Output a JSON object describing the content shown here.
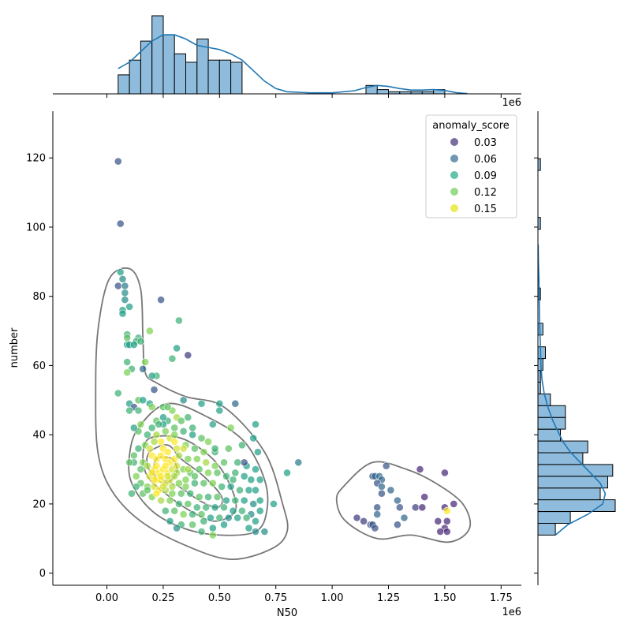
{
  "chart_data": {
    "type": "scatter",
    "xlabel": "N50",
    "ylabel": "number",
    "x_offset_label": "1e6",
    "top_offset_label": "1e6",
    "xlim": [
      -0.24,
      1.84
    ],
    "ylim": [
      -3.5,
      133.5
    ],
    "x_ticks": [
      0.0,
      0.25,
      0.5,
      0.75,
      1.0,
      1.25,
      1.5,
      1.75
    ],
    "x_tick_labels": [
      "0.00",
      "0.25",
      "0.50",
      "0.75",
      "1.00",
      "1.25",
      "1.50",
      "1.75"
    ],
    "y_ticks": [
      0,
      20,
      40,
      60,
      80,
      100,
      120
    ],
    "y_tick_labels": [
      "0",
      "20",
      "40",
      "60",
      "80",
      "100",
      "120"
    ],
    "legend": {
      "title": "anomaly_score",
      "position": "top-right",
      "entries": [
        {
          "label": "0.03",
          "color": "#4d3b82"
        },
        {
          "label": "0.06",
          "color": "#3f7398"
        },
        {
          "label": "0.09",
          "color": "#2fae8e"
        },
        {
          "label": "0.12",
          "color": "#79cf62"
        },
        {
          "label": "0.15",
          "color": "#e8e420"
        }
      ]
    },
    "points": [
      [
        0.05,
        119,
        0.05
      ],
      [
        0.06,
        101,
        0.05
      ],
      [
        0.06,
        87,
        0.09
      ],
      [
        0.07,
        85,
        0.08
      ],
      [
        0.05,
        83,
        0.05
      ],
      [
        0.08,
        83,
        0.07
      ],
      [
        0.08,
        81,
        0.08
      ],
      [
        0.24,
        79,
        0.05
      ],
      [
        0.1,
        77,
        0.09
      ],
      [
        0.08,
        79,
        0.08
      ],
      [
        0.07,
        76,
        0.09
      ],
      [
        0.07,
        75,
        0.09
      ],
      [
        0.32,
        73,
        0.1
      ],
      [
        0.19,
        70,
        0.12
      ],
      [
        0.09,
        69,
        0.1
      ],
      [
        0.09,
        68,
        0.11
      ],
      [
        0.09,
        66,
        0.09
      ],
      [
        0.1,
        66,
        0.09
      ],
      [
        0.14,
        68,
        0.1
      ],
      [
        0.13,
        67,
        0.1
      ],
      [
        0.15,
        67,
        0.1
      ],
      [
        0.12,
        66,
        0.09
      ],
      [
        0.31,
        65,
        0.09
      ],
      [
        0.36,
        63,
        0.04
      ],
      [
        0.29,
        62,
        0.1
      ],
      [
        0.17,
        61,
        0.12
      ],
      [
        0.09,
        61,
        0.1
      ],
      [
        0.11,
        59,
        0.1
      ],
      [
        0.16,
        59,
        0.06
      ],
      [
        0.09,
        58,
        0.12
      ],
      [
        0.22,
        57,
        0.1
      ],
      [
        0.2,
        57,
        0.09
      ],
      [
        0.05,
        52,
        0.1
      ],
      [
        0.21,
        53,
        0.05
      ],
      [
        0.1,
        49,
        0.09
      ],
      [
        0.12,
        48,
        0.05
      ],
      [
        0.14,
        50,
        0.11
      ],
      [
        0.1,
        47,
        0.1
      ],
      [
        0.16,
        50,
        0.09
      ],
      [
        0.14,
        47,
        0.1
      ],
      [
        0.19,
        49,
        0.09
      ],
      [
        0.2,
        48,
        0.12
      ],
      [
        0.25,
        48,
        0.11
      ],
      [
        0.34,
        50,
        0.08
      ],
      [
        0.42,
        49,
        0.09
      ],
      [
        0.5,
        49,
        0.09
      ],
      [
        0.57,
        49,
        0.06
      ],
      [
        0.5,
        47,
        0.09
      ],
      [
        0.66,
        43,
        0.09
      ],
      [
        0.47,
        43,
        0.09
      ],
      [
        0.29,
        47,
        0.12
      ],
      [
        0.31,
        45,
        0.13
      ],
      [
        0.27,
        44,
        0.1
      ],
      [
        0.33,
        44,
        0.11
      ],
      [
        0.36,
        45,
        0.1
      ],
      [
        0.25,
        43,
        0.09
      ],
      [
        0.22,
        44,
        0.11
      ],
      [
        0.2,
        42,
        0.1
      ],
      [
        0.15,
        43,
        0.12
      ],
      [
        0.14,
        41,
        0.11
      ],
      [
        0.12,
        42,
        0.09
      ],
      [
        0.18,
        40,
        0.1
      ],
      [
        0.22,
        40,
        0.13
      ],
      [
        0.26,
        41,
        0.12
      ],
      [
        0.3,
        42,
        0.11
      ],
      [
        0.34,
        41,
        0.1
      ],
      [
        0.38,
        40,
        0.09
      ],
      [
        0.42,
        39,
        0.11
      ],
      [
        0.45,
        38,
        0.12
      ],
      [
        0.28,
        39,
        0.14
      ],
      [
        0.3,
        38,
        0.15
      ],
      [
        0.24,
        38,
        0.15
      ],
      [
        0.21,
        38,
        0.13
      ],
      [
        0.17,
        37,
        0.12
      ],
      [
        0.14,
        36,
        0.1
      ],
      [
        0.12,
        34,
        0.11
      ],
      [
        0.19,
        36,
        0.14
      ],
      [
        0.25,
        36,
        0.15
      ],
      [
        0.27,
        35,
        0.15
      ],
      [
        0.31,
        36,
        0.14
      ],
      [
        0.35,
        37,
        0.12
      ],
      [
        0.39,
        36,
        0.11
      ],
      [
        0.43,
        35,
        0.12
      ],
      [
        0.48,
        35,
        0.1
      ],
      [
        0.54,
        36,
        0.11
      ],
      [
        0.6,
        37,
        0.1
      ],
      [
        0.65,
        39,
        0.09
      ],
      [
        0.67,
        35,
        0.09
      ],
      [
        0.2,
        34,
        0.15
      ],
      [
        0.22,
        33,
        0.15
      ],
      [
        0.24,
        34,
        0.16
      ],
      [
        0.26,
        33,
        0.15
      ],
      [
        0.28,
        32,
        0.16
      ],
      [
        0.3,
        33,
        0.15
      ],
      [
        0.32,
        34,
        0.13
      ],
      [
        0.36,
        33,
        0.12
      ],
      [
        0.4,
        33,
        0.12
      ],
      [
        0.44,
        32,
        0.13
      ],
      [
        0.48,
        31,
        0.12
      ],
      [
        0.52,
        32,
        0.11
      ],
      [
        0.58,
        32,
        0.1
      ],
      [
        0.62,
        31,
        0.09
      ],
      [
        0.66,
        30,
        0.09
      ],
      [
        0.16,
        32,
        0.12
      ],
      [
        0.12,
        32,
        0.1
      ],
      [
        0.15,
        30,
        0.11
      ],
      [
        0.18,
        31,
        0.13
      ],
      [
        0.21,
        30,
        0.15
      ],
      [
        0.23,
        29,
        0.16
      ],
      [
        0.25,
        30,
        0.15
      ],
      [
        0.27,
        29,
        0.15
      ],
      [
        0.29,
        30,
        0.14
      ],
      [
        0.31,
        29,
        0.13
      ],
      [
        0.34,
        30,
        0.12
      ],
      [
        0.37,
        29,
        0.11
      ],
      [
        0.41,
        30,
        0.11
      ],
      [
        0.45,
        29,
        0.12
      ],
      [
        0.49,
        29,
        0.11
      ],
      [
        0.53,
        28,
        0.1
      ],
      [
        0.57,
        29,
        0.1
      ],
      [
        0.61,
        28,
        0.09
      ],
      [
        0.64,
        27,
        0.09
      ],
      [
        0.68,
        27,
        0.09
      ],
      [
        0.19,
        28,
        0.14
      ],
      [
        0.22,
        27,
        0.15
      ],
      [
        0.24,
        27,
        0.16
      ],
      [
        0.26,
        26,
        0.14
      ],
      [
        0.28,
        27,
        0.14
      ],
      [
        0.32,
        26,
        0.12
      ],
      [
        0.35,
        27,
        0.12
      ],
      [
        0.39,
        26,
        0.1
      ],
      [
        0.43,
        26,
        0.11
      ],
      [
        0.47,
        26,
        0.12
      ],
      [
        0.51,
        25,
        0.1
      ],
      [
        0.55,
        25,
        0.09
      ],
      [
        0.59,
        24,
        0.1
      ],
      [
        0.63,
        24,
        0.09
      ],
      [
        0.66,
        24,
        0.09
      ],
      [
        0.18,
        25,
        0.12
      ],
      [
        0.21,
        25,
        0.14
      ],
      [
        0.23,
        24,
        0.15
      ],
      [
        0.26,
        24,
        0.13
      ],
      [
        0.29,
        23,
        0.12
      ],
      [
        0.33,
        23,
        0.11
      ],
      [
        0.37,
        23,
        0.1
      ],
      [
        0.41,
        22,
        0.11
      ],
      [
        0.45,
        22,
        0.1
      ],
      [
        0.49,
        22,
        0.11
      ],
      [
        0.53,
        21,
        0.09
      ],
      [
        0.57,
        21,
        0.1
      ],
      [
        0.61,
        21,
        0.09
      ],
      [
        0.65,
        20,
        0.08
      ],
      [
        0.68,
        21,
        0.09
      ],
      [
        0.74,
        20,
        0.09
      ],
      [
        0.16,
        23,
        0.11
      ],
      [
        0.2,
        22,
        0.12
      ],
      [
        0.24,
        21,
        0.13
      ],
      [
        0.28,
        21,
        0.12
      ],
      [
        0.32,
        20,
        0.1
      ],
      [
        0.36,
        20,
        0.11
      ],
      [
        0.4,
        19,
        0.1
      ],
      [
        0.44,
        19,
        0.1
      ],
      [
        0.48,
        19,
        0.09
      ],
      [
        0.52,
        19,
        0.1
      ],
      [
        0.56,
        18,
        0.09
      ],
      [
        0.6,
        18,
        0.1
      ],
      [
        0.64,
        17,
        0.08
      ],
      [
        0.68,
        18,
        0.09
      ],
      [
        0.26,
        18,
        0.1
      ],
      [
        0.3,
        18,
        0.11
      ],
      [
        0.34,
        17,
        0.12
      ],
      [
        0.38,
        17,
        0.1
      ],
      [
        0.42,
        17,
        0.11
      ],
      [
        0.46,
        16,
        0.09
      ],
      [
        0.5,
        16,
        0.1
      ],
      [
        0.54,
        16,
        0.08
      ],
      [
        0.58,
        16,
        0.09
      ],
      [
        0.62,
        16,
        0.1
      ],
      [
        0.66,
        15,
        0.09
      ],
      [
        0.7,
        12,
        0.08
      ],
      [
        0.28,
        15,
        0.09
      ],
      [
        0.33,
        14,
        0.1
      ],
      [
        0.38,
        14,
        0.11
      ],
      [
        0.43,
        15,
        0.1
      ],
      [
        0.47,
        13,
        0.09
      ],
      [
        0.52,
        14,
        0.09
      ],
      [
        0.42,
        12,
        0.1
      ],
      [
        0.47,
        11,
        0.12
      ],
      [
        0.31,
        13,
        0.08
      ],
      [
        0.63,
        13,
        0.09
      ],
      [
        0.66,
        12,
        0.08
      ],
      [
        0.22,
        23,
        0.15
      ],
      [
        0.18,
        24,
        0.11
      ],
      [
        0.15,
        26,
        0.11
      ],
      [
        0.13,
        25,
        0.1
      ],
      [
        0.11,
        23,
        0.1
      ],
      [
        0.13,
        28,
        0.12
      ],
      [
        0.1,
        32,
        0.11
      ],
      [
        0.25,
        45,
        0.09
      ],
      [
        0.27,
        48,
        0.11
      ],
      [
        0.23,
        43,
        0.1
      ],
      [
        0.3,
        40,
        0.12
      ],
      [
        0.38,
        42,
        0.1
      ],
      [
        0.55,
        42,
        0.12
      ],
      [
        0.61,
        32,
        0.05
      ],
      [
        0.8,
        29,
        0.09
      ],
      [
        0.85,
        32,
        0.07
      ],
      [
        0.56,
        27,
        0.1
      ],
      [
        0.48,
        36,
        0.1
      ],
      [
        0.36,
        30,
        0.13
      ],
      [
        0.34,
        36,
        0.14
      ],
      [
        0.26,
        31,
        0.15
      ],
      [
        0.22,
        31,
        0.16
      ],
      [
        0.2,
        29,
        0.15
      ],
      [
        0.24,
        28,
        0.16
      ],
      [
        0.27,
        28,
        0.14
      ],
      [
        0.3,
        28,
        0.13
      ],
      [
        0.31,
        31,
        0.14
      ],
      [
        0.29,
        25,
        0.13
      ],
      [
        0.25,
        25,
        0.14
      ],
      [
        0.21,
        27,
        0.15
      ],
      [
        0.35,
        25,
        0.12
      ],
      [
        0.39,
        28,
        0.11
      ],
      [
        1.24,
        31,
        0.05
      ],
      [
        1.39,
        30,
        0.03
      ],
      [
        1.5,
        29,
        0.03
      ],
      [
        1.18,
        28,
        0.05
      ],
      [
        1.19,
        28,
        0.06
      ],
      [
        1.21,
        28,
        0.06
      ],
      [
        1.22,
        27,
        0.06
      ],
      [
        1.2,
        26,
        0.05
      ],
      [
        1.22,
        25,
        0.06
      ],
      [
        1.26,
        24,
        0.06
      ],
      [
        1.22,
        23,
        0.05
      ],
      [
        1.29,
        21,
        0.06
      ],
      [
        1.41,
        22,
        0.03
      ],
      [
        1.54,
        20,
        0.03
      ],
      [
        1.2,
        19,
        0.05
      ],
      [
        1.3,
        19,
        0.05
      ],
      [
        1.37,
        19,
        0.04
      ],
      [
        1.4,
        19,
        0.03
      ],
      [
        1.5,
        19,
        0.03
      ],
      [
        1.51,
        18,
        0.15
      ],
      [
        1.2,
        17,
        0.06
      ],
      [
        1.32,
        16,
        0.06
      ],
      [
        1.11,
        16,
        0.04
      ],
      [
        1.14,
        15,
        0.04
      ],
      [
        1.17,
        14,
        0.05
      ],
      [
        1.18,
        14,
        0.05
      ],
      [
        1.19,
        13,
        0.05
      ],
      [
        1.29,
        14,
        0.05
      ],
      [
        1.47,
        15,
        0.03
      ],
      [
        1.51,
        15,
        0.03
      ],
      [
        1.5,
        13,
        0.03
      ],
      [
        1.48,
        12,
        0.03
      ],
      [
        1.51,
        12,
        0.03
      ]
    ],
    "top_histogram": {
      "bin_edges": [
        0.05,
        0.1,
        0.15,
        0.2,
        0.25,
        0.3,
        0.35,
        0.4,
        0.45,
        0.5,
        0.55,
        0.6,
        0.65,
        0.7,
        0.75,
        0.8,
        0.85,
        0.9,
        0.95,
        1.0,
        1.05,
        1.1,
        1.15,
        1.2,
        1.25,
        1.3,
        1.35,
        1.4,
        1.45,
        1.5,
        1.55
      ],
      "counts": [
        9,
        16,
        25,
        37,
        28,
        19,
        15,
        26,
        16,
        16,
        15,
        0,
        0,
        0,
        0,
        0,
        0,
        0,
        0,
        0,
        0,
        0,
        4,
        2,
        1,
        1,
        1,
        1,
        2,
        0
      ]
    },
    "right_histogram": {
      "bin_edges": [
        11,
        14.4,
        17.8,
        21.2,
        24.6,
        28,
        31.4,
        34.8,
        38.2,
        41.6,
        45,
        48.4,
        51.8,
        55.2,
        58.6,
        62,
        65.4,
        68.8,
        72.2,
        75.6,
        79,
        82.4,
        85.8,
        89.2,
        92.6,
        96,
        99.4,
        102.8,
        106.2,
        109.6,
        113,
        116.4,
        119.8
      ],
      "counts": [
        7,
        13,
        31,
        25,
        28,
        30,
        18,
        20,
        9,
        11,
        11,
        5,
        1,
        1,
        2,
        3,
        0,
        2,
        0,
        0,
        1,
        0,
        0,
        0,
        0,
        0,
        1,
        0,
        0,
        0,
        0,
        1
      ]
    }
  }
}
